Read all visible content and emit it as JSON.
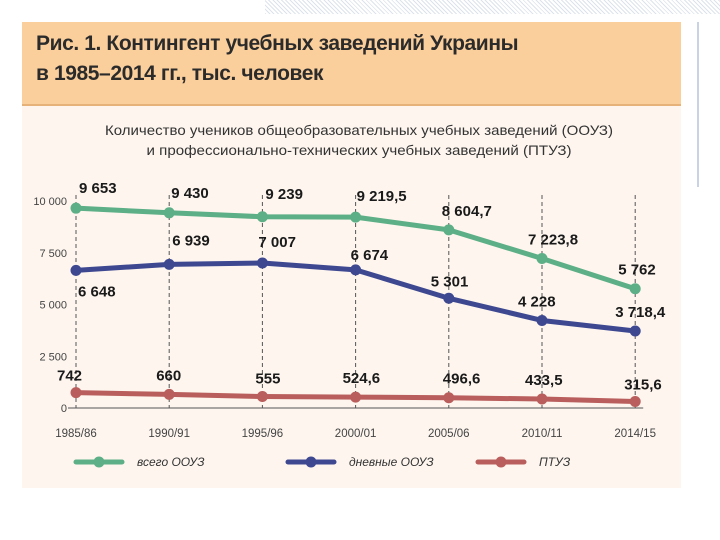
{
  "figure": {
    "title_line1": "Рис. 1. Контингент учебных заведений Украины",
    "title_line2": "в 1985–2014 гг., тыс. человек"
  },
  "chart_data": {
    "type": "line",
    "title_line1": "Количество учеников общеобразовательных учебных заведений (ООУЗ)",
    "title_line2": "и профессионально-технических  учебных заведений (ПТУЗ)",
    "categories": [
      "1985/86",
      "1990/91",
      "1995/96",
      "2000/01",
      "2005/06",
      "2010/11",
      "2014/15"
    ],
    "y_ticks": [
      "10 000",
      "7 500",
      "5 000",
      "2 500",
      "0"
    ],
    "ylim": [
      0,
      10000
    ],
    "series": [
      {
        "name": "всего ООУЗ",
        "color": "#5caf86",
        "values": [
          9653,
          9430,
          9239,
          9219.5,
          8604.7,
          7223.8,
          5762
        ],
        "labels": [
          "9 653",
          "9 430",
          "9 239",
          "9 219,5",
          "8 604,7",
          "7 223,8",
          "5 762"
        ]
      },
      {
        "name": "дневные ООУЗ",
        "color": "#3d4891",
        "values": [
          6648,
          6939,
          7007,
          6674,
          5301,
          4228,
          3718.4
        ],
        "labels": [
          "6 648",
          "6 939",
          "7 007",
          "6 674",
          "5 301",
          "4 228",
          "3 718,4"
        ]
      },
      {
        "name": "ПТУЗ",
        "color": "#b95e5c",
        "values": [
          742,
          660,
          555,
          524.6,
          496.6,
          433.5,
          315.6
        ],
        "labels": [
          "742",
          "660",
          "555",
          "524,6",
          "496,6",
          "433,5",
          "315,6"
        ]
      }
    ]
  }
}
